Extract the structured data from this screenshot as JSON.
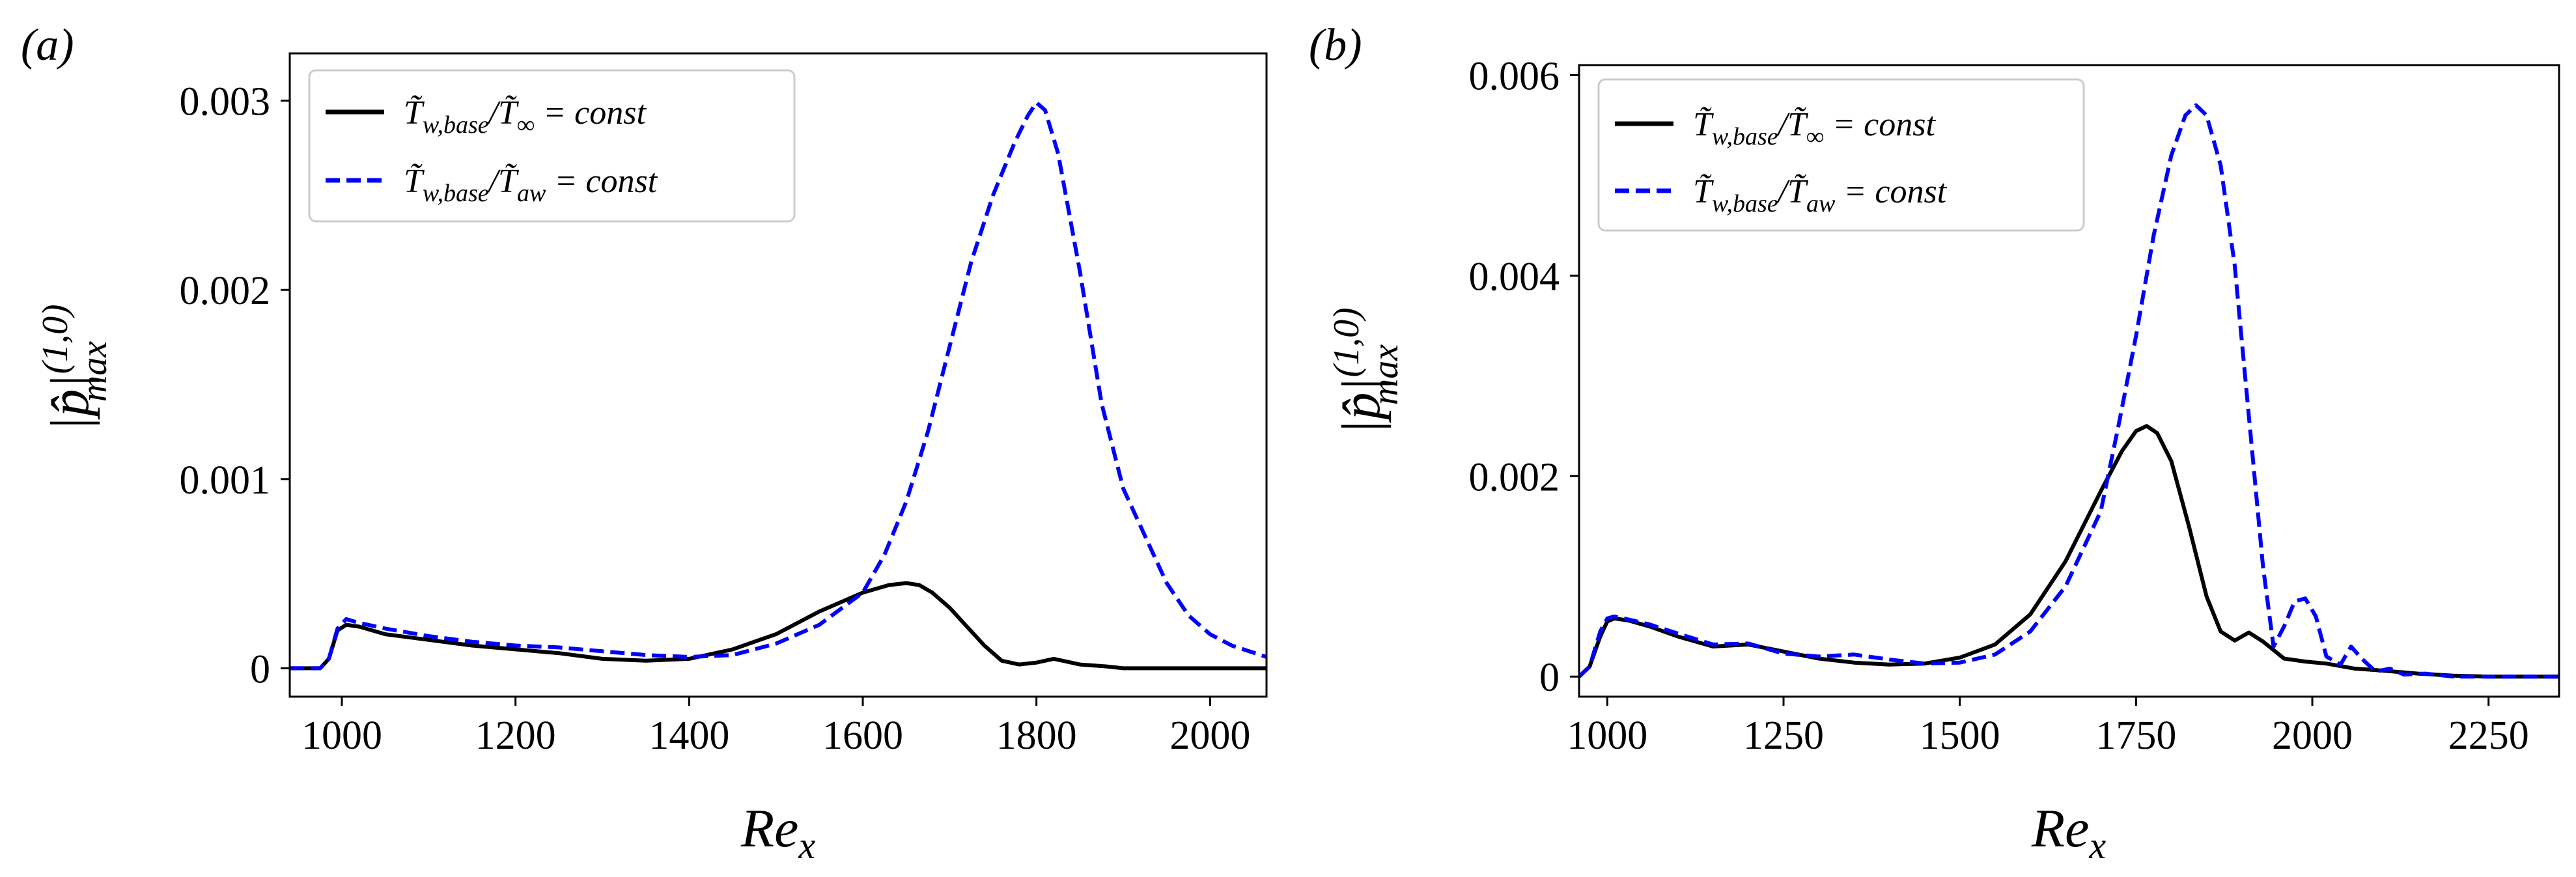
{
  "chart_data": [
    {
      "type": "line",
      "panel_label": "(a)",
      "xlabel": "Re",
      "xlabel_sub": "x",
      "ylabel": "|p̂|",
      "ylabel_sup": "(1,0)",
      "ylabel_sub": "max",
      "xlim": [
        940,
        2065
      ],
      "ylim": [
        -0.00015,
        0.00325
      ],
      "xticks": [
        1000,
        1200,
        1400,
        1600,
        1800,
        2000
      ],
      "xtick_labels": [
        "1000",
        "1200",
        "1400",
        "1600",
        "1800",
        "2000"
      ],
      "yticks": [
        0,
        0.001,
        0.002,
        0.003
      ],
      "ytick_labels": [
        "0",
        "0.001",
        "0.002",
        "0.003"
      ],
      "legend_position": "upper-left",
      "series": [
        {
          "name": "T̃w,base/T̃∞ = const",
          "name_parts": [
            "T̃",
            "w,base",
            "/T̃",
            "∞",
            " = const"
          ],
          "color": "#000000",
          "dash": "solid",
          "x": [
            940,
            975,
            985,
            995,
            1005,
            1020,
            1050,
            1100,
            1150,
            1200,
            1250,
            1300,
            1350,
            1400,
            1450,
            1500,
            1550,
            1600,
            1630,
            1650,
            1665,
            1680,
            1700,
            1720,
            1740,
            1760,
            1780,
            1800,
            1820,
            1850,
            1880,
            1900,
            1950,
            2000,
            2065
          ],
          "y": [
            0,
            0,
            5e-05,
            0.0002,
            0.00023,
            0.00022,
            0.00018,
            0.00015,
            0.00012,
            0.0001,
            8e-05,
            5e-05,
            4e-05,
            5e-05,
            0.0001,
            0.00018,
            0.0003,
            0.0004,
            0.00044,
            0.00045,
            0.00044,
            0.0004,
            0.00032,
            0.00022,
            0.00012,
            4e-05,
            2e-05,
            3e-05,
            5e-05,
            2e-05,
            1e-05,
            0,
            0,
            0,
            0
          ]
        },
        {
          "name": "T̃w,base/T̃aw = const",
          "name_parts": [
            "T̃",
            "w,base",
            "/T̃",
            "aw",
            " = const"
          ],
          "color": "#0000ff",
          "dash": "dashed",
          "x": [
            940,
            975,
            985,
            995,
            1005,
            1020,
            1050,
            1100,
            1150,
            1200,
            1250,
            1300,
            1350,
            1400,
            1450,
            1500,
            1550,
            1600,
            1625,
            1650,
            1675,
            1700,
            1725,
            1750,
            1775,
            1790,
            1800,
            1810,
            1825,
            1850,
            1875,
            1900,
            1925,
            1950,
            1975,
            2000,
            2025,
            2065
          ],
          "y": [
            0,
            0,
            5e-05,
            0.00021,
            0.00026,
            0.00024,
            0.00021,
            0.00017,
            0.00014,
            0.00012,
            0.00011,
            9e-05,
            7e-05,
            6e-05,
            7e-05,
            0.00013,
            0.00023,
            0.0004,
            0.0006,
            0.00088,
            0.00125,
            0.0017,
            0.00215,
            0.0025,
            0.00278,
            0.00292,
            0.00299,
            0.00295,
            0.00272,
            0.0021,
            0.0014,
            0.00095,
            0.0007,
            0.00045,
            0.00028,
            0.00018,
            0.00012,
            6e-05
          ]
        }
      ]
    },
    {
      "type": "line",
      "panel_label": "(b)",
      "xlabel": "Re",
      "xlabel_sub": "x",
      "ylabel": "|p̂|",
      "ylabel_sup": "(1,0)",
      "ylabel_sub": "max",
      "xlim": [
        960,
        2350
      ],
      "ylim": [
        -0.0002,
        0.0061
      ],
      "xticks": [
        1000,
        1250,
        1500,
        1750,
        2000,
        2250
      ],
      "xtick_labels": [
        "1000",
        "1250",
        "1500",
        "1750",
        "2000",
        "2250"
      ],
      "yticks": [
        0,
        0.002,
        0.004,
        0.006
      ],
      "ytick_labels": [
        "0",
        "0.002",
        "0.004",
        "0.006"
      ],
      "legend_position": "upper-left",
      "series": [
        {
          "name": "T̃w,base/T̃∞ = const",
          "name_parts": [
            "T̃",
            "w,base",
            "/T̃",
            "∞",
            " = const"
          ],
          "color": "#000000",
          "dash": "solid",
          "x": [
            960,
            975,
            990,
            1000,
            1010,
            1030,
            1060,
            1100,
            1150,
            1200,
            1250,
            1300,
            1350,
            1400,
            1450,
            1500,
            1550,
            1600,
            1650,
            1700,
            1730,
            1750,
            1765,
            1780,
            1800,
            1825,
            1850,
            1870,
            1890,
            1910,
            1930,
            1960,
            1990,
            2020,
            2060,
            2100,
            2150,
            2200,
            2250,
            2350
          ],
          "y": [
            0,
            0.0001,
            0.0004,
            0.00055,
            0.00058,
            0.00056,
            0.0005,
            0.0004,
            0.0003,
            0.00032,
            0.00025,
            0.00018,
            0.00014,
            0.00012,
            0.00013,
            0.00019,
            0.00032,
            0.00062,
            0.00115,
            0.00185,
            0.00225,
            0.00245,
            0.0025,
            0.00243,
            0.00215,
            0.0015,
            0.0008,
            0.00045,
            0.00036,
            0.00044,
            0.00035,
            0.00018,
            0.00015,
            0.00013,
            8e-05,
            6e-05,
            3e-05,
            1e-05,
            0,
            0
          ]
        },
        {
          "name": "T̃w,base/T̃aw = const",
          "name_parts": [
            "T̃",
            "w,base",
            "/T̃",
            "aw",
            " = const"
          ],
          "color": "#0000ff",
          "dash": "dashed",
          "x": [
            960,
            975,
            990,
            1000,
            1010,
            1030,
            1060,
            1100,
            1150,
            1200,
            1250,
            1300,
            1350,
            1400,
            1450,
            1500,
            1550,
            1600,
            1650,
            1700,
            1725,
            1750,
            1775,
            1800,
            1820,
            1835,
            1850,
            1870,
            1890,
            1910,
            1930,
            1945,
            1960,
            1975,
            1990,
            2005,
            2020,
            2040,
            2055,
            2070,
            2090,
            2110,
            2130,
            2160,
            2200,
            2250,
            2350
          ],
          "y": [
            0,
            0.0001,
            0.00045,
            0.00058,
            0.0006,
            0.00057,
            0.00052,
            0.00043,
            0.00032,
            0.00033,
            0.00023,
            0.0002,
            0.00022,
            0.00017,
            0.00013,
            0.00014,
            0.00022,
            0.00045,
            0.0009,
            0.00165,
            0.0025,
            0.0034,
            0.0044,
            0.0052,
            0.0056,
            0.0057,
            0.0056,
            0.0051,
            0.0041,
            0.0026,
            0.0011,
            0.0003,
            0.0005,
            0.00075,
            0.00078,
            0.0006,
            0.0002,
            0.00012,
            0.0003,
            0.00018,
            5e-05,
            8e-05,
            2e-05,
            3e-05,
            0,
            0,
            0
          ]
        }
      ]
    }
  ]
}
